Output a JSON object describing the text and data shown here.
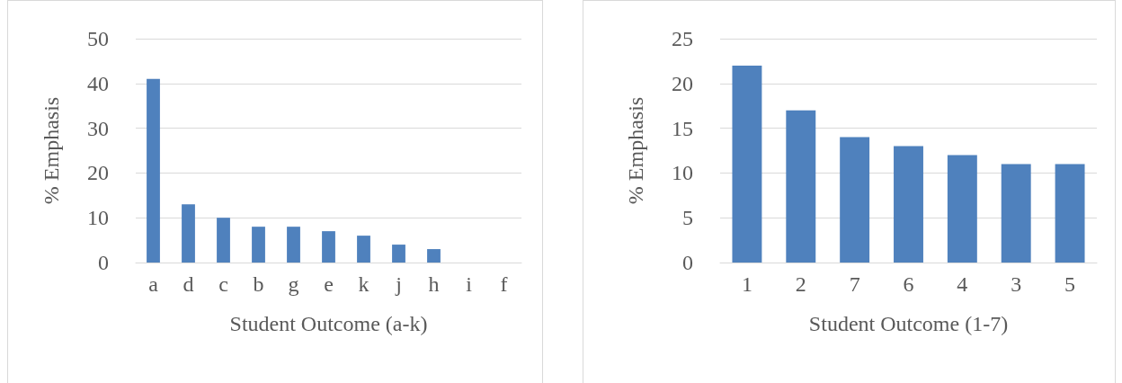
{
  "chart_data": [
    {
      "type": "bar",
      "categories": [
        "a",
        "d",
        "c",
        "b",
        "g",
        "e",
        "k",
        "j",
        "h",
        "i",
        "f"
      ],
      "values": [
        41,
        13,
        10,
        8,
        8,
        7,
        6,
        4,
        3,
        0,
        0
      ],
      "color": "#4f81bd",
      "xlabel": "Student Outcome (a-k)",
      "ylabel": "% Emphasis",
      "ylim": [
        0,
        50
      ],
      "yticks": [
        0,
        10,
        20,
        30,
        40,
        50
      ],
      "grid": "y"
    },
    {
      "type": "bar",
      "categories": [
        "1",
        "2",
        "7",
        "6",
        "4",
        "3",
        "5"
      ],
      "values": [
        22,
        17,
        14,
        13,
        12,
        11,
        11
      ],
      "color": "#4f81bd",
      "xlabel": "Student Outcome (1-7)",
      "ylabel": "% Emphasis",
      "ylim": [
        0,
        25
      ],
      "yticks": [
        0,
        5,
        10,
        15,
        20,
        25
      ],
      "grid": "y"
    }
  ]
}
